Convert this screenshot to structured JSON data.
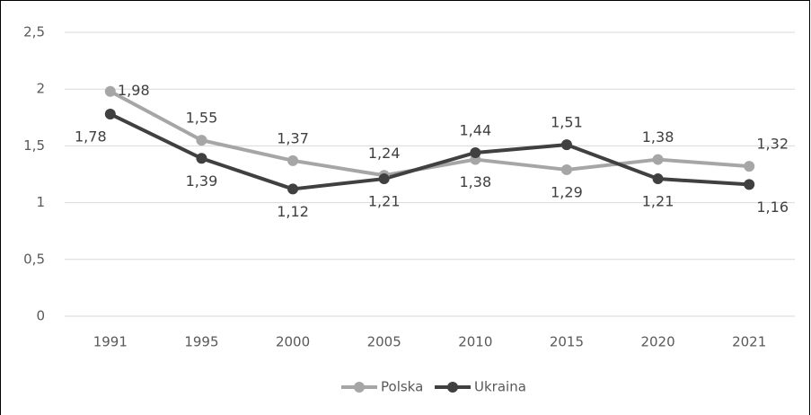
{
  "chart_data": {
    "type": "line",
    "categories": [
      "1991",
      "1995",
      "2000",
      "2005",
      "2010",
      "2015",
      "2020",
      "2021"
    ],
    "series": [
      {
        "name": "Polska",
        "color": "#a6a6a6",
        "values": [
          1.98,
          1.55,
          1.37,
          1.24,
          1.38,
          1.29,
          1.38,
          1.32
        ],
        "value_labels": [
          "1,98",
          "1,55",
          "1,37",
          "1,24",
          "1,38",
          "1,29",
          "1,38",
          "1,32"
        ]
      },
      {
        "name": "Ukraina",
        "color": "#404040",
        "values": [
          1.78,
          1.39,
          1.12,
          1.21,
          1.44,
          1.51,
          1.21,
          1.16
        ],
        "value_labels": [
          "1,78",
          "1,39",
          "1,12",
          "1,21",
          "1,44",
          "1,51",
          "1,21",
          "1,16"
        ]
      }
    ],
    "ylim": [
      0,
      2.5
    ],
    "yticks": [
      0,
      {
        "value": 0.5,
        "label": "0,5"
      },
      1,
      {
        "value": 1.5,
        "label": "1,5"
      },
      2,
      {
        "value": 2.5,
        "label": "2,5"
      }
    ],
    "grid": true,
    "legend": "bottom"
  }
}
